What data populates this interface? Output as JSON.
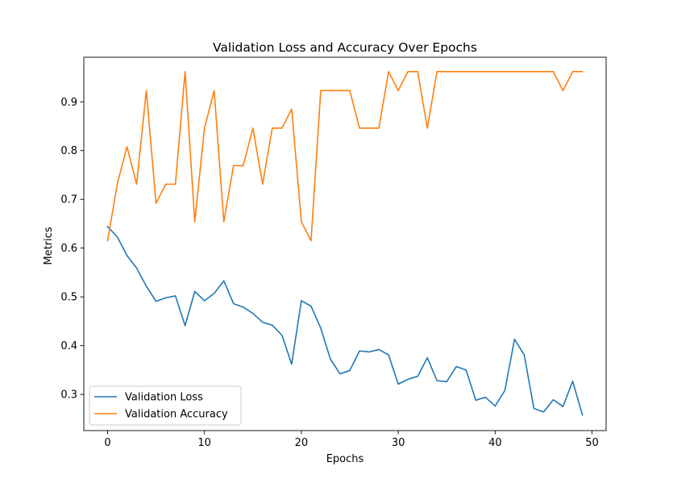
{
  "chart_data": {
    "type": "line",
    "title": "Validation Loss and Accuracy Over Epochs",
    "xlabel": "Epochs",
    "ylabel": "Metrics",
    "xlim": [
      -2.45,
      51.45
    ],
    "ylim": [
      0.2257,
      0.9914
    ],
    "x_ticks": [
      0,
      10,
      20,
      30,
      40,
      50
    ],
    "y_ticks": [
      0.3,
      0.4,
      0.5,
      0.6,
      0.7,
      0.8,
      0.9
    ],
    "x_tick_labels": [
      "0",
      "10",
      "20",
      "30",
      "40",
      "50"
    ],
    "y_tick_labels": [
      "0.3",
      "0.4",
      "0.5",
      "0.6",
      "0.7",
      "0.8",
      "0.9"
    ],
    "grid": false,
    "legend_position": "lower-left",
    "x": [
      0,
      1,
      2,
      3,
      4,
      5,
      6,
      7,
      8,
      9,
      10,
      11,
      12,
      13,
      14,
      15,
      16,
      17,
      18,
      19,
      20,
      21,
      22,
      23,
      24,
      25,
      26,
      27,
      28,
      29,
      30,
      31,
      32,
      33,
      34,
      35,
      36,
      37,
      38,
      39,
      40,
      41,
      42,
      43,
      44,
      45,
      46,
      47,
      48,
      49
    ],
    "series": [
      {
        "name": "Validation Loss",
        "color": "#1f77b4",
        "values": [
          0.644,
          0.623,
          0.585,
          0.559,
          0.522,
          0.491,
          0.498,
          0.502,
          0.441,
          0.511,
          0.492,
          0.507,
          0.533,
          0.486,
          0.479,
          0.466,
          0.448,
          0.442,
          0.421,
          0.362,
          0.492,
          0.481,
          0.436,
          0.372,
          0.342,
          0.349,
          0.389,
          0.387,
          0.392,
          0.381,
          0.321,
          0.331,
          0.337,
          0.375,
          0.328,
          0.326,
          0.357,
          0.35,
          0.288,
          0.294,
          0.276,
          0.308,
          0.413,
          0.381,
          0.271,
          0.264,
          0.289,
          0.275,
          0.327,
          0.258
        ]
      },
      {
        "name": "Validation Accuracy",
        "color": "#ff7f0e",
        "values": [
          0.615,
          0.731,
          0.808,
          0.731,
          0.923,
          0.692,
          0.731,
          0.731,
          0.962,
          0.654,
          0.846,
          0.923,
          0.654,
          0.769,
          0.769,
          0.846,
          0.731,
          0.846,
          0.846,
          0.885,
          0.654,
          0.615,
          0.923,
          0.923,
          0.923,
          0.923,
          0.846,
          0.846,
          0.846,
          0.962,
          0.923,
          0.962,
          0.962,
          0.846,
          0.962,
          0.962,
          0.962,
          0.962,
          0.962,
          0.962,
          0.962,
          0.962,
          0.962,
          0.962,
          0.962,
          0.962,
          0.962,
          0.923,
          0.962,
          0.962
        ]
      }
    ]
  }
}
